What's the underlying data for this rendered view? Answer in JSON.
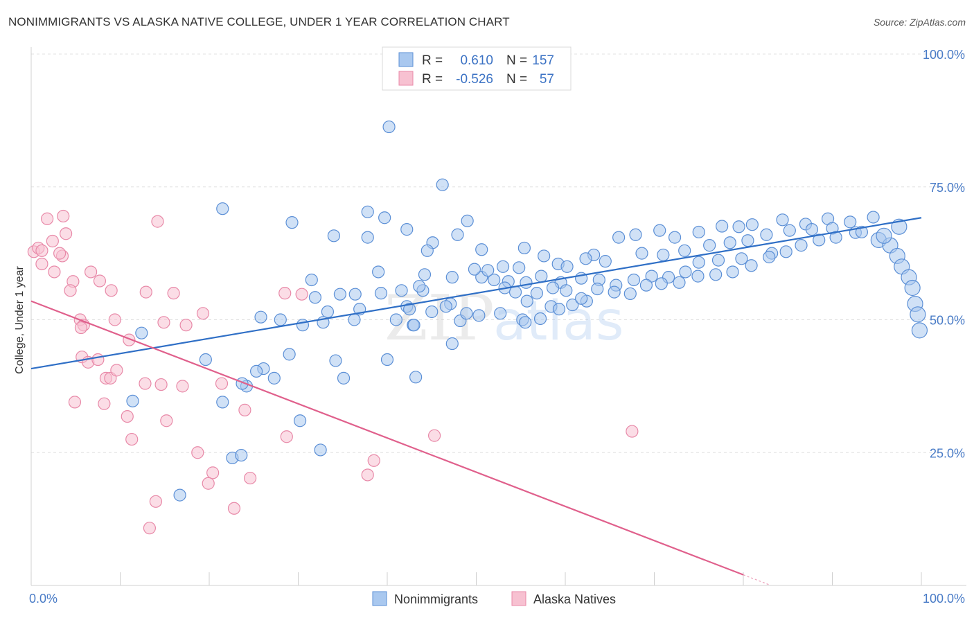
{
  "header": {
    "title": "NONIMMIGRANTS VS ALASKA NATIVE COLLEGE, UNDER 1 YEAR CORRELATION CHART",
    "source": "Source: ZipAtlas.com"
  },
  "legend_top": {
    "rows": [
      {
        "r_label": "R =",
        "r_value": "0.610",
        "n_label": "N =",
        "n_value": "157"
      },
      {
        "r_label": "R =",
        "r_value": "-0.526",
        "n_label": "N =",
        "n_value": "57"
      }
    ]
  },
  "legend_bottom": {
    "items": [
      {
        "label": "Nonimmigrants"
      },
      {
        "label": "Alaska Natives"
      }
    ]
  },
  "watermark": {
    "part1": "ZIP",
    "part2": "atlas"
  },
  "colors": {
    "blue_fill": "#a9c8ef",
    "blue_stroke": "#5b8fd6",
    "blue_line": "#2f6fc6",
    "pink_fill": "#f7c1d1",
    "pink_stroke": "#e889a8",
    "pink_line": "#e0608c",
    "grid": "#e0e0e0",
    "tick_text": "#4a7cc7"
  },
  "chart_data": {
    "type": "scatter",
    "title": "NONIMMIGRANTS VS ALASKA NATIVE COLLEGE, UNDER 1 YEAR CORRELATION CHART",
    "xlabel": "",
    "ylabel": "College, Under 1 year",
    "xlim": [
      0,
      100
    ],
    "ylim": [
      0,
      100
    ],
    "x_tick_labels": [
      "0.0%",
      "100.0%"
    ],
    "y_tick_labels": [
      "25.0%",
      "50.0%",
      "75.0%",
      "100.0%"
    ],
    "y_ticks": [
      25,
      50,
      75,
      100
    ],
    "grid": "horizontal dashed",
    "legend": "top-center and bottom-center",
    "series": [
      {
        "name": "Nonimmigrants",
        "r": 0.61,
        "n": 157,
        "trend": {
          "x": [
            0,
            100
          ],
          "y": [
            40.8,
            69.2
          ]
        },
        "points": [
          [
            40.2,
            86.3
          ],
          [
            46.2,
            75.4
          ],
          [
            21.5,
            70.9
          ],
          [
            37.8,
            70.3
          ],
          [
            39.7,
            69.2
          ],
          [
            29.3,
            68.3
          ],
          [
            49.0,
            68.6
          ],
          [
            34.0,
            65.8
          ],
          [
            37.8,
            65.5
          ],
          [
            42.2,
            67.0
          ],
          [
            45.1,
            64.5
          ],
          [
            47.9,
            66.0
          ],
          [
            50.6,
            63.2
          ],
          [
            44.5,
            63.0
          ],
          [
            55.4,
            63.5
          ],
          [
            57.6,
            62.0
          ],
          [
            59.2,
            60.5
          ],
          [
            63.2,
            62.2
          ],
          [
            66.0,
            65.5
          ],
          [
            67.9,
            66.0
          ],
          [
            70.6,
            66.8
          ],
          [
            72.3,
            65.5
          ],
          [
            75.0,
            66.5
          ],
          [
            77.6,
            67.6
          ],
          [
            79.5,
            67.5
          ],
          [
            81.0,
            67.9
          ],
          [
            84.4,
            68.8
          ],
          [
            87.0,
            68.0
          ],
          [
            89.5,
            69.0
          ],
          [
            92.0,
            68.4
          ],
          [
            94.6,
            69.3
          ],
          [
            97.5,
            67.5
          ],
          [
            60.2,
            60.0
          ],
          [
            62.3,
            61.5
          ],
          [
            64.5,
            61.0
          ],
          [
            68.6,
            62.5
          ],
          [
            71.0,
            62.2
          ],
          [
            73.4,
            63.0
          ],
          [
            76.2,
            64.0
          ],
          [
            78.5,
            64.5
          ],
          [
            80.5,
            64.9
          ],
          [
            82.6,
            66.0
          ],
          [
            85.2,
            66.8
          ],
          [
            87.7,
            67.0
          ],
          [
            90.0,
            67.2
          ],
          [
            92.6,
            66.4
          ],
          [
            95.2,
            65.0
          ],
          [
            96.5,
            64.0
          ],
          [
            97.3,
            62.0
          ],
          [
            97.8,
            60.0
          ],
          [
            98.6,
            58.0
          ],
          [
            99.0,
            56.0
          ],
          [
            99.3,
            53.0
          ],
          [
            99.6,
            51.0
          ],
          [
            99.8,
            48.0
          ],
          [
            50.6,
            58.0
          ],
          [
            52.0,
            57.5
          ],
          [
            53.6,
            57.2
          ],
          [
            55.6,
            57.0
          ],
          [
            57.3,
            58.2
          ],
          [
            59.5,
            57.0
          ],
          [
            61.8,
            57.8
          ],
          [
            63.8,
            57.5
          ],
          [
            65.7,
            56.5
          ],
          [
            67.7,
            57.5
          ],
          [
            69.7,
            58.2
          ],
          [
            71.6,
            58.0
          ],
          [
            73.5,
            59.0
          ],
          [
            75.0,
            60.8
          ],
          [
            77.2,
            61.2
          ],
          [
            79.8,
            61.5
          ],
          [
            83.2,
            62.5
          ],
          [
            86.5,
            64.0
          ],
          [
            88.5,
            65.0
          ],
          [
            90.4,
            65.5
          ],
          [
            93.3,
            66.5
          ],
          [
            95.8,
            65.8
          ],
          [
            34.7,
            54.8
          ],
          [
            36.4,
            54.8
          ],
          [
            39.3,
            55.0
          ],
          [
            41.6,
            55.5
          ],
          [
            44.0,
            55.5
          ],
          [
            47.1,
            53.0
          ],
          [
            55.7,
            53.5
          ],
          [
            50.3,
            50.8
          ],
          [
            52.7,
            51.2
          ],
          [
            55.2,
            50.0
          ],
          [
            58.4,
            52.5
          ],
          [
            60.8,
            52.8
          ],
          [
            62.4,
            53.5
          ],
          [
            44.2,
            58.5
          ],
          [
            47.3,
            58.0
          ],
          [
            49.8,
            59.5
          ],
          [
            51.3,
            59.3
          ],
          [
            53.0,
            60.0
          ],
          [
            54.8,
            59.8
          ],
          [
            31.5,
            57.5
          ],
          [
            39.0,
            59.0
          ],
          [
            43.6,
            56.3
          ],
          [
            42.2,
            52.5
          ],
          [
            33.3,
            51.5
          ],
          [
            30.5,
            49.0
          ],
          [
            28.0,
            50.0
          ],
          [
            25.8,
            50.5
          ],
          [
            32.8,
            49.5
          ],
          [
            36.3,
            50.0
          ],
          [
            41.0,
            50.0
          ],
          [
            42.9,
            49.0
          ],
          [
            48.2,
            49.8
          ],
          [
            55.5,
            49.5
          ],
          [
            57.2,
            50.2
          ],
          [
            59.3,
            52.0
          ],
          [
            40.0,
            42.5
          ],
          [
            34.2,
            42.3
          ],
          [
            29.0,
            43.5
          ],
          [
            27.3,
            39.0
          ],
          [
            26.1,
            40.8
          ],
          [
            25.3,
            40.3
          ],
          [
            24.2,
            37.5
          ],
          [
            23.7,
            38.0
          ],
          [
            35.1,
            39.0
          ],
          [
            43.2,
            39.2
          ],
          [
            47.3,
            45.5
          ],
          [
            43.0,
            49.0
          ],
          [
            42.5,
            52.0
          ],
          [
            12.4,
            47.5
          ],
          [
            19.6,
            42.5
          ],
          [
            11.4,
            34.7
          ],
          [
            21.5,
            34.5
          ],
          [
            30.2,
            31.0
          ],
          [
            22.6,
            24.0
          ],
          [
            23.6,
            24.5
          ],
          [
            32.5,
            25.5
          ],
          [
            16.7,
            17.0
          ],
          [
            45.0,
            51.5
          ],
          [
            46.6,
            52.5
          ],
          [
            48.9,
            51.2
          ],
          [
            31.9,
            54.2
          ],
          [
            36.9,
            52.0
          ],
          [
            53.2,
            56.0
          ],
          [
            54.4,
            55.2
          ],
          [
            56.8,
            55.0
          ],
          [
            58.6,
            56.0
          ],
          [
            60.1,
            55.5
          ],
          [
            61.8,
            54.0
          ],
          [
            63.6,
            55.8
          ],
          [
            65.5,
            55.2
          ],
          [
            67.3,
            54.9
          ],
          [
            69.1,
            56.5
          ],
          [
            70.8,
            56.8
          ],
          [
            72.8,
            57.0
          ],
          [
            74.9,
            58.2
          ],
          [
            76.9,
            58.5
          ],
          [
            78.8,
            59.0
          ],
          [
            80.9,
            60.2
          ],
          [
            82.9,
            61.8
          ],
          [
            84.8,
            62.8
          ]
        ]
      },
      {
        "name": "Alaska Natives",
        "r": -0.526,
        "n": 57,
        "trend": {
          "x": [
            0,
            80
          ],
          "y": [
            53.5,
            2.0
          ]
        },
        "points": [
          [
            0.3,
            62.8
          ],
          [
            0.8,
            63.5
          ],
          [
            1.8,
            69.0
          ],
          [
            3.6,
            69.5
          ],
          [
            14.2,
            68.5
          ],
          [
            3.9,
            66.2
          ],
          [
            2.4,
            64.8
          ],
          [
            1.2,
            60.5
          ],
          [
            2.6,
            59.0
          ],
          [
            3.5,
            62.0
          ],
          [
            4.7,
            57.2
          ],
          [
            4.4,
            55.5
          ],
          [
            6.7,
            59.0
          ],
          [
            7.7,
            57.3
          ],
          [
            9.0,
            55.5
          ],
          [
            12.9,
            55.2
          ],
          [
            16.0,
            55.0
          ],
          [
            30.4,
            54.8
          ],
          [
            19.3,
            51.2
          ],
          [
            9.4,
            50.0
          ],
          [
            5.5,
            50.0
          ],
          [
            5.9,
            49.0
          ],
          [
            14.9,
            49.5
          ],
          [
            17.4,
            49.0
          ],
          [
            11.0,
            46.2
          ],
          [
            5.7,
            43.0
          ],
          [
            6.4,
            42.0
          ],
          [
            7.5,
            42.5
          ],
          [
            8.4,
            39.0
          ],
          [
            8.9,
            39.0
          ],
          [
            9.6,
            40.5
          ],
          [
            12.8,
            38.0
          ],
          [
            14.6,
            37.8
          ],
          [
            17.0,
            37.5
          ],
          [
            21.4,
            38.0
          ],
          [
            4.9,
            34.5
          ],
          [
            8.2,
            34.2
          ],
          [
            10.8,
            31.8
          ],
          [
            15.2,
            31.0
          ],
          [
            11.3,
            27.5
          ],
          [
            24.0,
            33.0
          ],
          [
            28.7,
            28.0
          ],
          [
            45.3,
            28.2
          ],
          [
            67.5,
            29.0
          ],
          [
            18.7,
            25.0
          ],
          [
            20.4,
            21.2
          ],
          [
            19.9,
            19.2
          ],
          [
            24.6,
            20.2
          ],
          [
            37.8,
            20.8
          ],
          [
            38.5,
            23.5
          ],
          [
            14.0,
            15.8
          ],
          [
            13.3,
            10.8
          ],
          [
            22.8,
            14.5
          ],
          [
            1.2,
            63.0
          ],
          [
            3.2,
            62.5
          ],
          [
            5.6,
            48.5
          ],
          [
            28.5,
            55.0
          ]
        ]
      }
    ]
  }
}
